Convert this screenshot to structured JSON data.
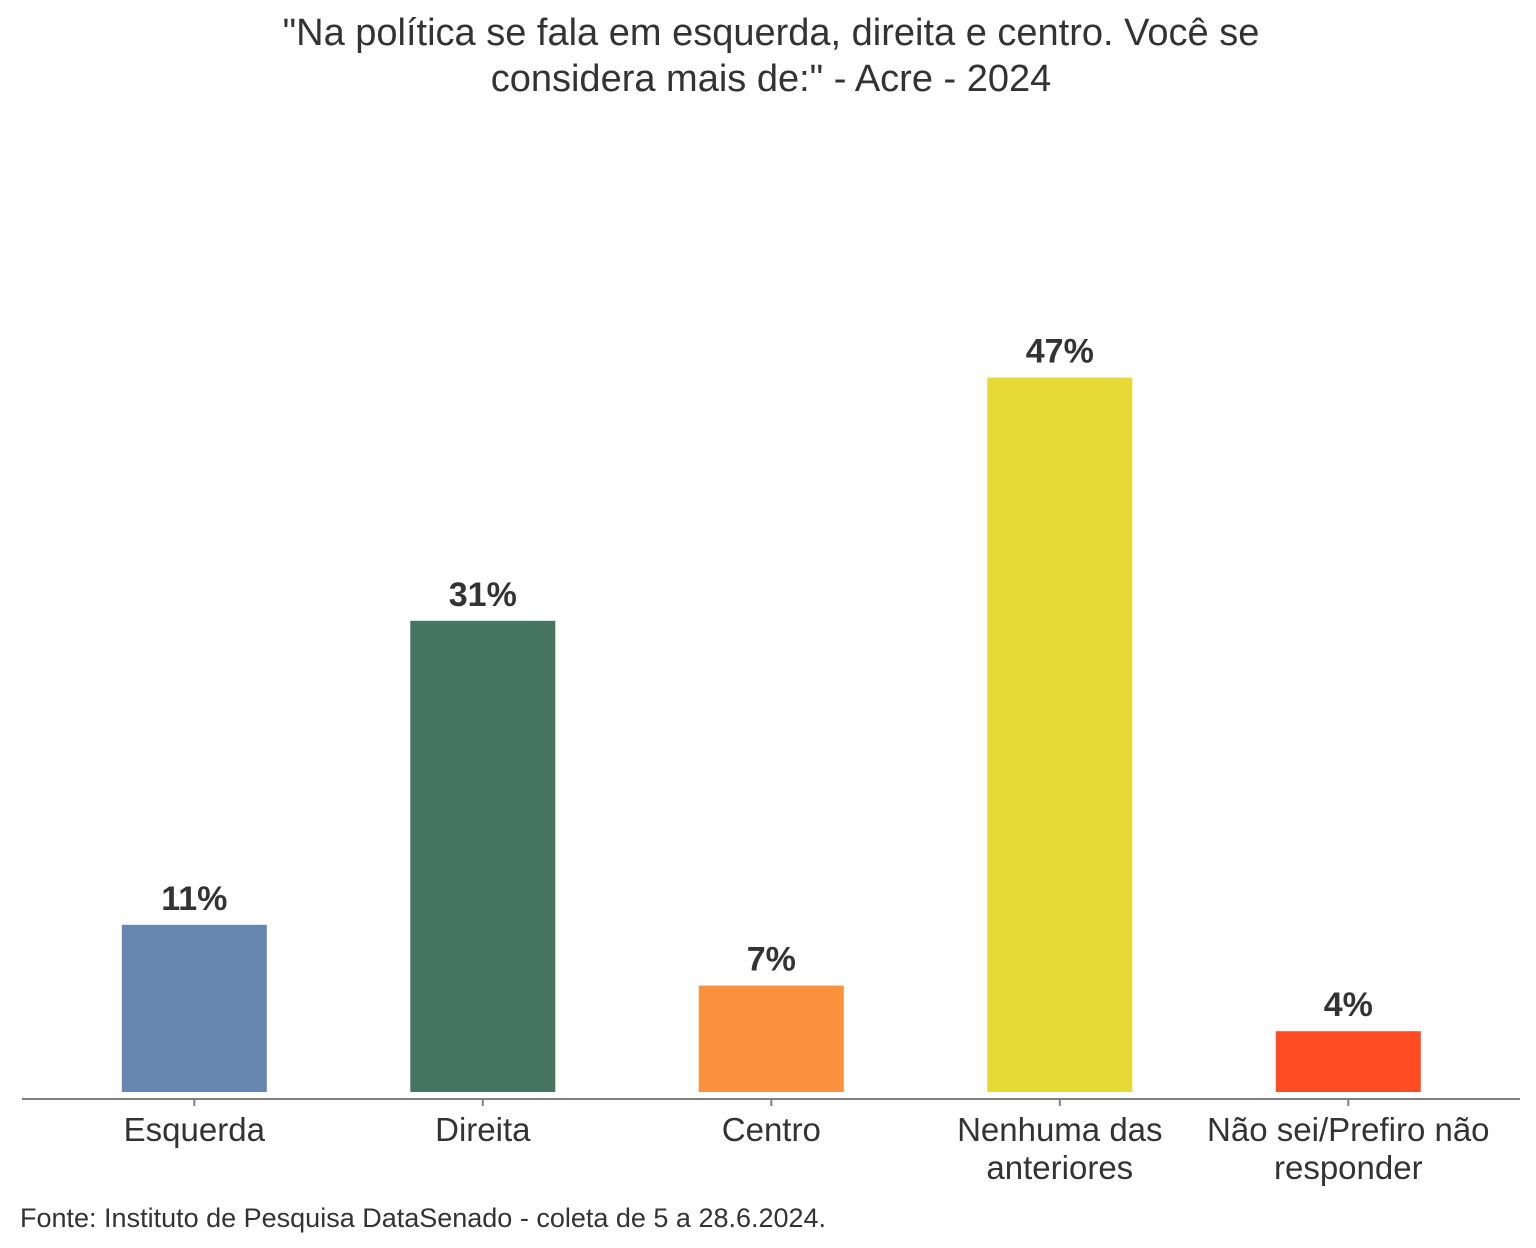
{
  "chart_data": {
    "type": "bar",
    "title_line1": "\"Na política se fala em esquerda, direita e centro. Você se",
    "title_line2": "considera mais de:\" - Acre - 2024",
    "categories": [
      {
        "lines": [
          "Esquerda"
        ]
      },
      {
        "lines": [
          "Direita"
        ]
      },
      {
        "lines": [
          "Centro"
        ]
      },
      {
        "lines": [
          "Nenhuma das",
          "anteriores"
        ]
      },
      {
        "lines": [
          "Não sei/Prefiro não",
          "responder"
        ]
      }
    ],
    "values": [
      11,
      31,
      7,
      47,
      4
    ],
    "data_labels": [
      "11%",
      "31%",
      "7%",
      "47%",
      "4%"
    ],
    "colors": [
      "#6688b0",
      "#467564",
      "#fa913c",
      "#e6d936",
      "#ff4c23"
    ],
    "ylim": [
      0,
      60
    ],
    "grid": false,
    "legend": "none",
    "xlabel": "",
    "ylabel": ""
  },
  "source": "Fonte: Instituto de Pesquisa DataSenado - coleta de 5 a 28.6.2024."
}
